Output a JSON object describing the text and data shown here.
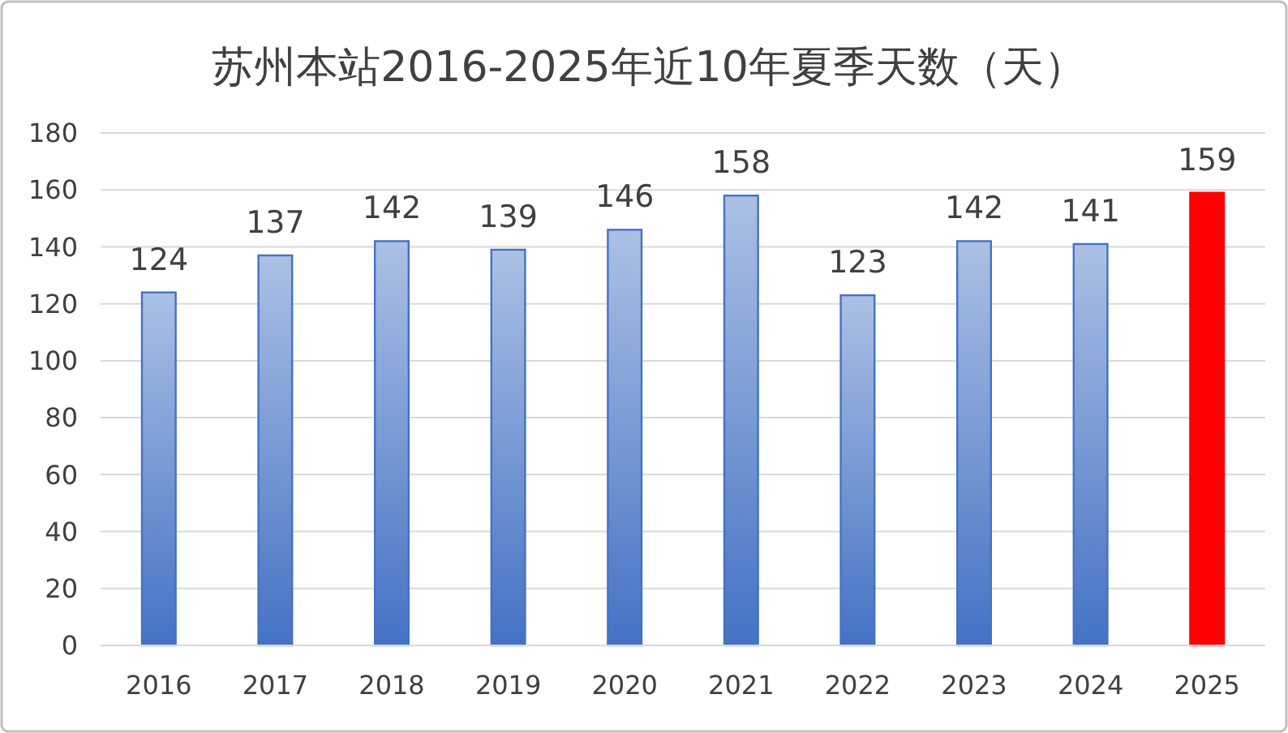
{
  "chart_data": {
    "type": "bar",
    "title": "苏州本站2016-2025年近10年夏季天数（天）",
    "categories": [
      "2016",
      "2017",
      "2018",
      "2019",
      "2020",
      "2021",
      "2022",
      "2023",
      "2024",
      "2025"
    ],
    "values": [
      124,
      137,
      142,
      139,
      146,
      158,
      123,
      142,
      141,
      159
    ],
    "colors": [
      "#4472c4",
      "#4472c4",
      "#4472c4",
      "#4472c4",
      "#4472c4",
      "#4472c4",
      "#4472c4",
      "#4472c4",
      "#4472c4",
      "#ff0000"
    ],
    "ylim": [
      0,
      180
    ],
    "yticks": [
      0,
      20,
      40,
      60,
      80,
      100,
      120,
      140,
      160,
      180
    ],
    "grid": "y",
    "data_labels": true
  }
}
